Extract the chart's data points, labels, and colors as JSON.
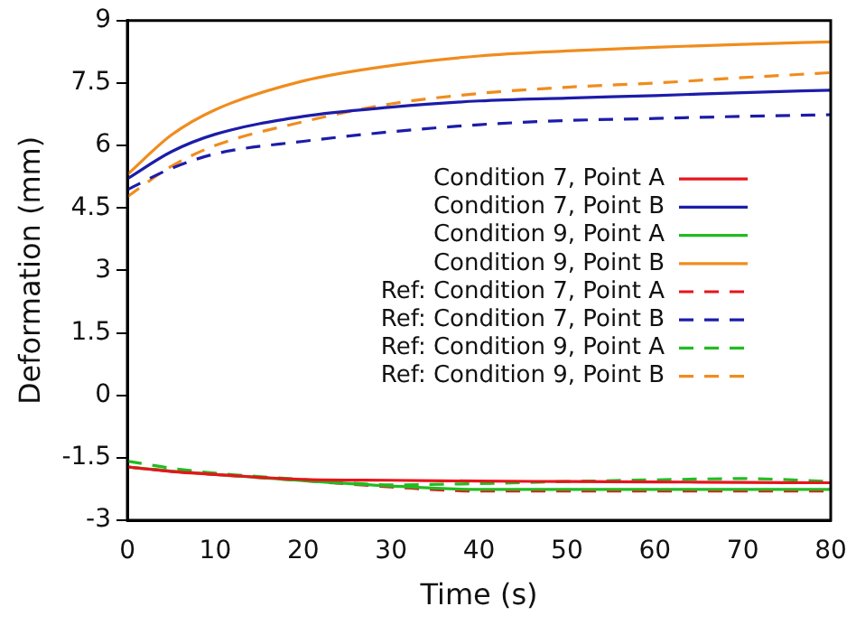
{
  "chart_data": {
    "type": "line",
    "xlabel": "Time (s)",
    "ylabel": "Deformation (mm)",
    "x": [
      0,
      5,
      10,
      20,
      30,
      40,
      50,
      60,
      70,
      80
    ],
    "xlim": [
      0,
      80
    ],
    "xticks": [
      0,
      10,
      20,
      30,
      40,
      50,
      60,
      70,
      80
    ],
    "ylim": [
      -3,
      9
    ],
    "yticks": [
      -3,
      -1.5,
      0,
      1.5,
      3,
      4.5,
      6,
      7.5,
      9
    ],
    "grid": false,
    "legend": "right",
    "marker": "none",
    "series": [
      {
        "name": "Condition 7, Point A",
        "color": "#e8141c",
        "line_style": "solid",
        "values": [
          -1.72,
          -1.83,
          -1.9,
          -2.02,
          -2.04,
          -2.06,
          -2.07,
          -2.08,
          -2.09,
          -2.1
        ]
      },
      {
        "name": "Condition 7, Point B",
        "color": "#1c1caa",
        "line_style": "solid",
        "values": [
          5.2,
          5.85,
          6.27,
          6.7,
          6.92,
          7.07,
          7.14,
          7.2,
          7.27,
          7.33
        ]
      },
      {
        "name": "Condition 9, Point A",
        "color": "#22bb22",
        "line_style": "solid",
        "values": [
          -1.72,
          -1.82,
          -1.9,
          -2.05,
          -2.18,
          -2.26,
          -2.26,
          -2.26,
          -2.26,
          -2.26
        ]
      },
      {
        "name": "Condition 9, Point B",
        "color": "#f08c1e",
        "line_style": "solid",
        "values": [
          5.3,
          6.25,
          6.86,
          7.55,
          7.92,
          8.15,
          8.27,
          8.36,
          8.43,
          8.49
        ]
      },
      {
        "name": "Ref: Condition 7, Point A",
        "color": "#e8141c",
        "line_style": "dashed",
        "values": [
          -1.72,
          -1.82,
          -1.9,
          -2.05,
          -2.2,
          -2.3,
          -2.3,
          -2.3,
          -2.3,
          -2.3
        ]
      },
      {
        "name": "Ref: Condition 7, Point B",
        "color": "#1c1caa",
        "line_style": "dashed",
        "values": [
          4.94,
          5.45,
          5.8,
          6.1,
          6.33,
          6.5,
          6.6,
          6.65,
          6.7,
          6.74
        ]
      },
      {
        "name": "Ref: Condition 9, Point A",
        "color": "#22bb22",
        "line_style": "dashed",
        "values": [
          -1.58,
          -1.75,
          -1.87,
          -2.02,
          -2.15,
          -2.12,
          -2.07,
          -2.03,
          -2.0,
          -2.07
        ]
      },
      {
        "name": "Ref: Condition 9, Point B",
        "color": "#f08c1e",
        "line_style": "dashed",
        "values": [
          4.77,
          5.5,
          6.0,
          6.57,
          7.0,
          7.25,
          7.4,
          7.5,
          7.63,
          7.75
        ]
      }
    ]
  }
}
